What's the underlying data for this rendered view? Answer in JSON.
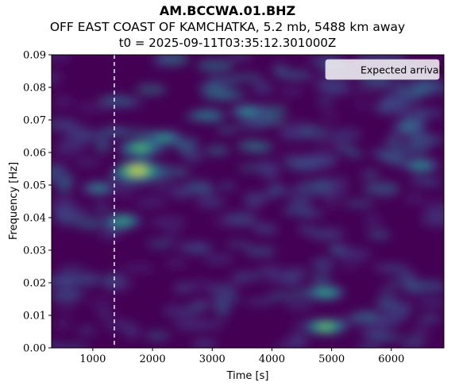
{
  "title": {
    "station": "AM.BCCWA.01.BHZ",
    "event": "OFF EAST COAST OF KAMCHATKA, 5.2 mb, 5488 km away",
    "t0": "t0 = 2025-09-11T03:35:12.301000Z"
  },
  "chart_data": {
    "type": "heatmap",
    "title": "AM.BCCWA.01.BHZ",
    "xlabel": "Time [s]",
    "ylabel": "Frequency [Hz]",
    "xlim": [
      310,
      6880
    ],
    "ylim": [
      0.0,
      0.09
    ],
    "xticks": [
      1000,
      2000,
      3000,
      4000,
      5000,
      6000
    ],
    "yticks": [
      0.0,
      0.01,
      0.02,
      0.03,
      0.04,
      0.05,
      0.06,
      0.07,
      0.08,
      0.09
    ],
    "xtick_labels": [
      "1000",
      "2000",
      "3000",
      "4000",
      "5000",
      "6000"
    ],
    "ytick_labels": [
      "0.00",
      "0.01",
      "0.02",
      "0.03",
      "0.04",
      "0.05",
      "0.06",
      "0.07",
      "0.08",
      "0.09"
    ],
    "colormap": "viridis",
    "expected_arrival_time": 1360,
    "legend": {
      "label": "Expected arrival",
      "placement": "top-right"
    },
    "hotspots": [
      {
        "t": 1750,
        "f": 0.0545,
        "level": 1.0
      },
      {
        "t": 1800,
        "f": 0.0615,
        "level": 0.75
      },
      {
        "t": 2200,
        "f": 0.0645,
        "level": 0.6
      },
      {
        "t": 1500,
        "f": 0.039,
        "level": 0.65
      },
      {
        "t": 1100,
        "f": 0.049,
        "level": 0.5
      },
      {
        "t": 3600,
        "f": 0.0725,
        "level": 0.55
      },
      {
        "t": 4900,
        "f": 0.0065,
        "level": 0.8
      },
      {
        "t": 4900,
        "f": 0.017,
        "level": 0.65
      },
      {
        "t": 6500,
        "f": 0.056,
        "level": 0.55
      },
      {
        "t": 6300,
        "f": 0.068,
        "level": 0.45
      }
    ]
  }
}
